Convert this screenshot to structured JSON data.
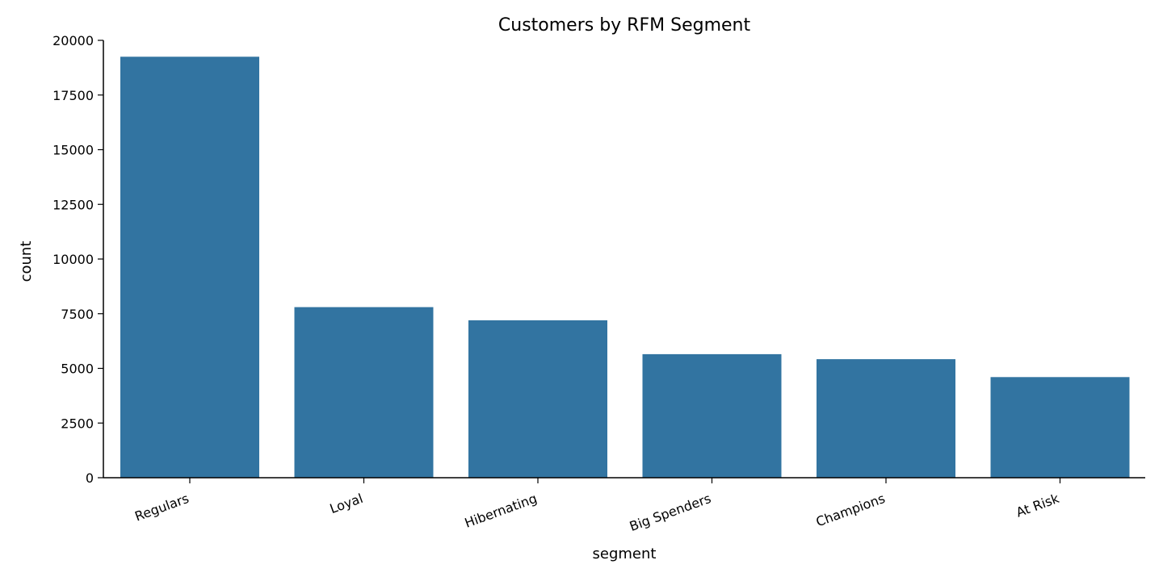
{
  "chart_data": {
    "type": "bar",
    "title": "Customers by RFM Segment",
    "xlabel": "segment",
    "ylabel": "count",
    "categories": [
      "Regulars",
      "Loyal",
      "Hibernating",
      "Big Spenders",
      "Champions",
      "At Risk"
    ],
    "values": [
      19250,
      7800,
      7200,
      5650,
      5420,
      4600
    ],
    "ylim": [
      0,
      20000
    ],
    "yticks": [
      0,
      2500,
      5000,
      7500,
      10000,
      12500,
      15000,
      17500,
      20000
    ],
    "ytick_labels": [
      "0",
      "2500",
      "5000",
      "7500",
      "10000",
      "12500",
      "15000",
      "17500",
      "20000"
    ],
    "bar_color": "#3274a1",
    "grid": false,
    "legend": "none"
  }
}
